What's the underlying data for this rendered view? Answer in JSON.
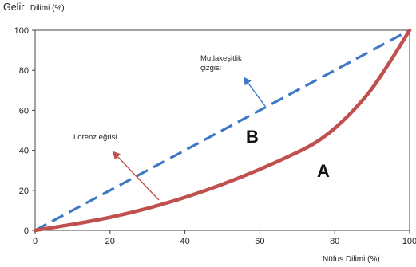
{
  "chart_data": {
    "type": "line",
    "ylabel_main": "Gelir",
    "ylabel_small": "Dilimi (%)",
    "xlabel": "Nüfus Dilimi (%)",
    "xlim": [
      0,
      100
    ],
    "ylim": [
      0,
      100
    ],
    "xticks": [
      "0",
      "20",
      "40",
      "60",
      "80",
      "100"
    ],
    "yticks": [
      "0",
      "20",
      "40",
      "60",
      "80",
      "100"
    ],
    "grid": false,
    "colors": {
      "equality": "#3f78c4",
      "lorenz": "#c0504d",
      "annotation_arrow": "#c0504d",
      "equality_arrow": "#3f78c4"
    },
    "series": [
      {
        "key": "equality",
        "style": "dashed",
        "x": [
          0,
          100
        ],
        "y": [
          0,
          100
        ]
      },
      {
        "key": "lorenz",
        "style": "solid",
        "x": [
          0,
          10,
          20,
          30,
          40,
          50,
          60,
          70,
          75,
          80,
          85,
          90,
          95,
          100
        ],
        "y": [
          0,
          3,
          6.5,
          11,
          16.5,
          23,
          30.5,
          39,
          44,
          51,
          60,
          71,
          85,
          100
        ]
      }
    ],
    "annotations": {
      "lorenz_label": "Lorenz eğrisi",
      "equality_label_line1": "Mutlakeşitlik",
      "equality_label_line2": "çizgisi",
      "region_b": "B",
      "region_a": "A"
    }
  }
}
